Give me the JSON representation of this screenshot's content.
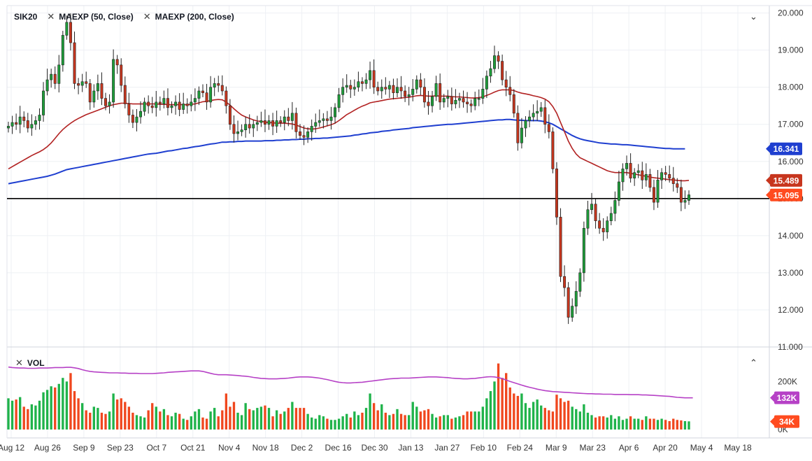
{
  "header": {
    "symbol": "SIK20",
    "studies": [
      "MAEXP (50, Close)",
      "MAEXP (200, Close)"
    ],
    "close_icon": "close-icon",
    "collapse_icon": "chevron-down-icon"
  },
  "volume_pane": {
    "label": "VOL",
    "close_icon": "close-icon",
    "collapse_icon": "chevron-up-icon",
    "y_ticks": [
      "200K",
      "0K"
    ],
    "badges": [
      {
        "label": "132K",
        "color": "#b641c6"
      },
      {
        "label": "34K",
        "color": "#ff4b1f"
      }
    ]
  },
  "colors": {
    "up": "#1e9e3a",
    "down": "#c7361e",
    "ma50": "#b22222",
    "ma200": "#1f3fd0",
    "vol_ma": "#b641c6",
    "vol_up": "#1fb34a",
    "vol_down": "#f0471e"
  },
  "chart_data": {
    "type": "candlestick",
    "ylim": [
      11.0,
      20.2
    ],
    "y_ticks": [
      "20.000",
      "19.000",
      "18.000",
      "17.000",
      "16.000",
      "15.000",
      "14.000",
      "13.000",
      "12.000",
      "11.000"
    ],
    "x_ticks": [
      "Aug 12",
      "Aug 26",
      "Sep 9",
      "Sep 23",
      "Oct 7",
      "Oct 21",
      "Nov 4",
      "Nov 18",
      "Dec 2",
      "Dec 16",
      "Dec 30",
      "Jan 13",
      "Jan 27",
      "Feb 10",
      "Feb 24",
      "Mar 9",
      "Mar 23",
      "Apr 6",
      "Apr 20",
      "May 4",
      "May 18"
    ],
    "horizontal_line": 15.0,
    "price_badges": [
      {
        "label": "16.341",
        "value": 16.341,
        "color": "#1f3fd0"
      },
      {
        "label": "15.489",
        "value": 15.489,
        "color": "#c7361e"
      },
      {
        "label": "15.095",
        "value": 15.095,
        "color": "#ff4b1f"
      }
    ],
    "closes": [
      16.95,
      17.05,
      17.0,
      17.2,
      17.1,
      16.9,
      17.0,
      17.1,
      17.25,
      17.9,
      18.2,
      18.35,
      18.1,
      18.6,
      19.4,
      19.75,
      19.2,
      18.1,
      18.05,
      18.15,
      18.1,
      17.6,
      17.9,
      18.1,
      17.7,
      17.5,
      17.6,
      18.75,
      18.6,
      18.05,
      17.55,
      17.25,
      17.05,
      17.2,
      17.35,
      17.6,
      17.5,
      17.45,
      17.6,
      17.55,
      17.7,
      17.45,
      17.5,
      17.6,
      17.4,
      17.55,
      17.5,
      17.6,
      17.7,
      17.9,
      17.85,
      17.6,
      18.0,
      18.1,
      18.05,
      17.9,
      17.5,
      17.0,
      16.75,
      16.8,
      16.85,
      17.0,
      16.9,
      17.0,
      17.05,
      17.1,
      17.0,
      17.1,
      16.95,
      17.1,
      17.05,
      17.2,
      17.1,
      17.3,
      16.8,
      16.7,
      16.65,
      16.8,
      16.95,
      17.05,
      17.1,
      17.15,
      17.1,
      17.2,
      17.45,
      17.8,
      18.0,
      18.05,
      17.95,
      18.0,
      18.15,
      18.1,
      18.2,
      18.45,
      18.0,
      17.9,
      18.0,
      17.95,
      18.05,
      17.85,
      18.0,
      17.9,
      17.75,
      17.8,
      17.95,
      18.2,
      18.0,
      17.6,
      17.5,
      17.75,
      18.1,
      17.6,
      17.7,
      17.75,
      17.55,
      17.65,
      17.7,
      17.6,
      17.55,
      17.5,
      17.7,
      17.7,
      17.95,
      18.3,
      18.5,
      18.85,
      18.7,
      18.2,
      18.0,
      17.8,
      17.3,
      16.5,
      16.9,
      17.1,
      17.2,
      17.3,
      17.35,
      17.45,
      17.0,
      16.8,
      15.8,
      14.5,
      12.9,
      12.6,
      11.8,
      12.1,
      12.5,
      13.0,
      14.2,
      14.7,
      14.85,
      14.4,
      14.2,
      14.1,
      14.4,
      14.6,
      14.95,
      15.45,
      15.8,
      15.95,
      15.55,
      15.7,
      15.75,
      15.5,
      15.65,
      15.3,
      14.9,
      15.5,
      15.7,
      15.65,
      15.55,
      15.4,
      15.3,
      14.9,
      14.95,
      15.1
    ],
    "ma50": [
      15.8,
      15.86,
      15.92,
      15.98,
      16.04,
      16.1,
      16.16,
      16.21,
      16.26,
      16.32,
      16.4,
      16.5,
      16.62,
      16.75,
      16.86,
      16.95,
      17.03,
      17.1,
      17.16,
      17.21,
      17.26,
      17.3,
      17.34,
      17.38,
      17.42,
      17.46,
      17.5,
      17.53,
      17.55,
      17.57,
      17.57,
      17.56,
      17.55,
      17.55,
      17.55,
      17.55,
      17.55,
      17.55,
      17.55,
      17.54,
      17.54,
      17.53,
      17.53,
      17.53,
      17.53,
      17.53,
      17.53,
      17.54,
      17.55,
      17.58,
      17.61,
      17.62,
      17.64,
      17.66,
      17.67,
      17.66,
      17.6,
      17.52,
      17.42,
      17.33,
      17.25,
      17.2,
      17.16,
      17.12,
      17.09,
      17.08,
      17.06,
      17.05,
      17.04,
      17.03,
      17.03,
      17.03,
      17.02,
      17.01,
      16.98,
      16.94,
      16.9,
      16.88,
      16.87,
      16.88,
      16.9,
      16.93,
      16.96,
      16.99,
      17.03,
      17.1,
      17.18,
      17.26,
      17.32,
      17.38,
      17.44,
      17.49,
      17.53,
      17.58,
      17.6,
      17.62,
      17.64,
      17.66,
      17.68,
      17.69,
      17.7,
      17.71,
      17.72,
      17.73,
      17.75,
      17.77,
      17.78,
      17.77,
      17.76,
      17.76,
      17.77,
      17.76,
      17.76,
      17.76,
      17.75,
      17.74,
      17.74,
      17.73,
      17.72,
      17.71,
      17.71,
      17.72,
      17.74,
      17.78,
      17.82,
      17.87,
      17.91,
      17.93,
      17.93,
      17.93,
      17.91,
      17.87,
      17.84,
      17.82,
      17.8,
      17.77,
      17.75,
      17.72,
      17.68,
      17.61,
      17.48,
      17.3,
      17.05,
      16.8,
      16.55,
      16.35,
      16.2,
      16.1,
      16.05,
      16.0,
      15.95,
      15.9,
      15.85,
      15.8,
      15.75,
      15.72,
      15.7,
      15.7,
      15.7,
      15.7,
      15.68,
      15.66,
      15.64,
      15.62,
      15.6,
      15.58,
      15.56,
      15.55,
      15.54,
      15.52,
      15.51,
      15.5,
      15.49,
      15.48,
      15.48,
      15.49
    ],
    "ma200": [
      15.4,
      15.42,
      15.44,
      15.46,
      15.48,
      15.5,
      15.52,
      15.54,
      15.56,
      15.58,
      15.6,
      15.63,
      15.66,
      15.7,
      15.74,
      15.78,
      15.8,
      15.82,
      15.84,
      15.86,
      15.88,
      15.9,
      15.92,
      15.94,
      15.96,
      15.98,
      16.0,
      16.02,
      16.04,
      16.06,
      16.08,
      16.1,
      16.12,
      16.14,
      16.16,
      16.18,
      16.2,
      16.21,
      16.22,
      16.24,
      16.26,
      16.28,
      16.29,
      16.31,
      16.33,
      16.35,
      16.36,
      16.38,
      16.4,
      16.41,
      16.43,
      16.45,
      16.47,
      16.48,
      16.5,
      16.52,
      16.52,
      16.53,
      16.53,
      16.54,
      16.54,
      16.55,
      16.55,
      16.55,
      16.55,
      16.55,
      16.56,
      16.56,
      16.56,
      16.57,
      16.57,
      16.58,
      16.58,
      16.59,
      16.59,
      16.6,
      16.6,
      16.61,
      16.61,
      16.62,
      16.62,
      16.63,
      16.63,
      16.64,
      16.65,
      16.66,
      16.67,
      16.68,
      16.69,
      16.71,
      16.72,
      16.74,
      16.75,
      16.77,
      16.78,
      16.79,
      16.81,
      16.82,
      16.83,
      16.85,
      16.86,
      16.87,
      16.88,
      16.89,
      16.91,
      16.92,
      16.93,
      16.94,
      16.95,
      16.96,
      16.97,
      16.98,
      16.99,
      17.0,
      17.0,
      17.01,
      17.02,
      17.03,
      17.04,
      17.05,
      17.06,
      17.07,
      17.08,
      17.09,
      17.1,
      17.11,
      17.12,
      17.12,
      17.13,
      17.13,
      17.12,
      17.11,
      17.11,
      17.1,
      17.1,
      17.1,
      17.1,
      17.09,
      17.07,
      17.04,
      17.0,
      16.94,
      16.88,
      16.82,
      16.76,
      16.7,
      16.65,
      16.61,
      16.58,
      16.56,
      16.54,
      16.52,
      16.5,
      16.49,
      16.48,
      16.47,
      16.47,
      16.46,
      16.45,
      16.45,
      16.44,
      16.43,
      16.42,
      16.41,
      16.4,
      16.39,
      16.38,
      16.37,
      16.36,
      16.35,
      16.35,
      16.34,
      16.34,
      16.34,
      16.34
    ],
    "volume": {
      "ylim": [
        0,
        300000
      ],
      "values": [
        130000,
        120000,
        125000,
        135000,
        95000,
        85000,
        105000,
        100000,
        120000,
        155000,
        165000,
        180000,
        175000,
        190000,
        215000,
        200000,
        235000,
        160000,
        130000,
        110000,
        80000,
        70000,
        95000,
        90000,
        70000,
        65000,
        75000,
        150000,
        125000,
        130000,
        115000,
        95000,
        70000,
        60000,
        55000,
        50000,
        80000,
        110000,
        95000,
        75000,
        85000,
        60000,
        55000,
        70000,
        65000,
        45000,
        40000,
        55000,
        75000,
        85000,
        50000,
        45000,
        75000,
        90000,
        55000,
        80000,
        150000,
        95000,
        115000,
        70000,
        60000,
        110000,
        85000,
        80000,
        90000,
        95000,
        100000,
        90000,
        55000,
        80000,
        65000,
        75000,
        90000,
        115000,
        90000,
        90000,
        90000,
        65000,
        50000,
        45000,
        60000,
        55000,
        45000,
        40000,
        40000,
        45000,
        55000,
        65000,
        50000,
        75000,
        60000,
        70000,
        90000,
        150000,
        110000,
        80000,
        105000,
        70000,
        60000,
        65000,
        85000,
        65000,
        60000,
        60000,
        115000,
        95000,
        75000,
        80000,
        85000,
        65000,
        50000,
        55000,
        60000,
        60000,
        45000,
        50000,
        55000,
        60000,
        75000,
        75000,
        75000,
        75000,
        95000,
        130000,
        160000,
        200000,
        275000,
        215000,
        235000,
        175000,
        150000,
        140000,
        150000,
        110000,
        90000,
        115000,
        125000,
        100000,
        90000,
        80000,
        75000,
        145000,
        130000,
        115000,
        120000,
        95000,
        85000,
        75000,
        105000,
        70000,
        60000,
        50000,
        55000,
        55000,
        50000,
        60000,
        45000,
        55000,
        40000,
        45000,
        55000,
        45000,
        45000,
        40000,
        55000,
        45000,
        45000,
        40000,
        45000,
        40000,
        35000,
        45000,
        40000,
        38000,
        35000,
        34000,
        38000,
        34000,
        30000,
        34000
      ],
      "ma": [
        260000,
        258000,
        257000,
        256000,
        256000,
        255000,
        255000,
        255000,
        256000,
        256000,
        256000,
        257000,
        258000,
        258000,
        258000,
        259000,
        259000,
        257000,
        254000,
        249000,
        245000,
        242000,
        240000,
        239000,
        238000,
        237000,
        236000,
        236000,
        236000,
        235000,
        235000,
        234000,
        234000,
        234000,
        233000,
        233000,
        233000,
        233000,
        234000,
        235000,
        236000,
        238000,
        239000,
        240000,
        241000,
        242000,
        243000,
        244000,
        244000,
        244000,
        242000,
        238000,
        234000,
        230000,
        228000,
        228000,
        228000,
        227000,
        226000,
        225000,
        223000,
        222000,
        220000,
        217000,
        215000,
        213000,
        212000,
        211000,
        211000,
        211000,
        212000,
        213000,
        214000,
        216000,
        218000,
        219000,
        219000,
        219000,
        218000,
        216000,
        214000,
        211000,
        208000,
        204000,
        200000,
        197000,
        195000,
        194000,
        194000,
        195000,
        196000,
        197000,
        199000,
        201000,
        203000,
        205000,
        207000,
        209000,
        211000,
        212000,
        213000,
        214000,
        214000,
        214000,
        215000,
        216000,
        217000,
        218000,
        219000,
        219000,
        219000,
        218000,
        217000,
        216000,
        214000,
        213000,
        212000,
        211000,
        211000,
        212000,
        213000,
        215000,
        217000,
        219000,
        220000,
        219000,
        216000,
        212000,
        206000,
        200000,
        195000,
        190000,
        185000,
        180000,
        176000,
        172000,
        168000,
        165000,
        162000,
        160000,
        158000,
        157000,
        156000,
        155000,
        154000,
        153000,
        152000,
        151000,
        150000,
        149000,
        149000,
        148000,
        148000,
        147000,
        147000,
        147000,
        146000,
        146000,
        146000,
        146000,
        145000,
        145000,
        145000,
        144000,
        144000,
        143000,
        142000,
        141000,
        140000,
        139000,
        138000,
        136000,
        134000,
        133000,
        132000,
        132000,
        132000
      ]
    }
  }
}
